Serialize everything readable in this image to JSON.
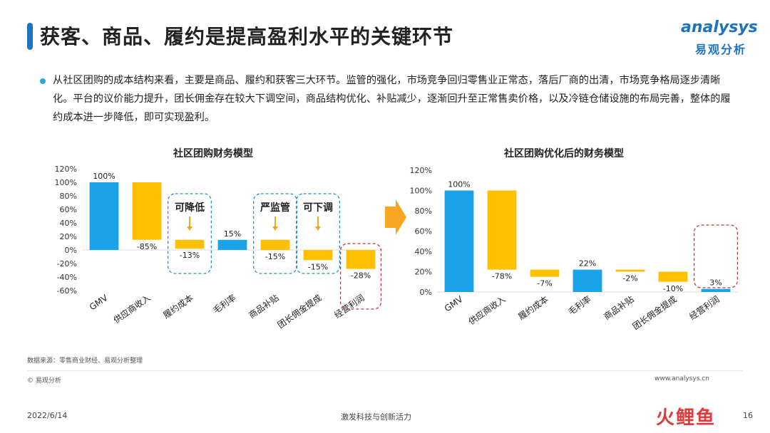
{
  "header": {
    "title": "获客、商品、履约是提高盈利水平的关键环节",
    "logo_en": "analysys",
    "logo_cn": "易观分析"
  },
  "summary": "从社区团购的成本结构来看，主要是商品、履约和获客三大环节。监管的强化，市场竞争回归零售业正常态，落后厂商的出清，市场竞争格局逐步清晰化。平台的议价能力提升，团长佣金存在较大下调空间，商品结构优化、补贴减少，逐渐回升至正常售卖价格，以及冷链仓储设施的布局完善，整体的履约成本进一步降低，即可实现盈利。",
  "chart_data": [
    {
      "type": "bar",
      "title": "社区团购财务模型",
      "categories": [
        "GMV",
        "供应商收入",
        "履约成本",
        "毛利率",
        "商品补贴",
        "团长佣金提成",
        "经营利润"
      ],
      "values": [
        100,
        -85,
        -13,
        15,
        -15,
        -15,
        -28
      ],
      "value_labels": [
        "100%",
        "-85%",
        "-13%",
        "15%",
        "-15%",
        "-15%",
        "-28%"
      ],
      "ylim": [
        -60,
        120
      ],
      "yticks": [
        "120%",
        "100%",
        "80%",
        "60%",
        "40%",
        "20%",
        "0%",
        "-20%",
        "-40%",
        "-60%"
      ],
      "colors": [
        "#1aa3e8",
        "#ffc000",
        "#ffc000",
        "#1aa3e8",
        "#ffc000",
        "#ffc000",
        "#ffc000"
      ],
      "annotations": [
        "可降低",
        "严监管",
        "可下调"
      ]
    },
    {
      "type": "bar",
      "title": "社区团购优化后的财务模型",
      "categories": [
        "GMV",
        "供应商收入",
        "履约成本",
        "毛利率",
        "商品补贴",
        "团长佣金提成",
        "经营利润"
      ],
      "values": [
        100,
        -78,
        -7,
        22,
        -2,
        -10,
        3
      ],
      "value_labels": [
        "100%",
        "-78%",
        "-7%",
        "22%",
        "-2%",
        "-10%",
        "3%"
      ],
      "ylim": [
        0,
        120
      ],
      "yticks": [
        "120%",
        "100%",
        "80%",
        "60%",
        "40%",
        "20%",
        "0%"
      ],
      "colors": [
        "#1aa3e8",
        "#ffc000",
        "#ffc000",
        "#1aa3e8",
        "#ffc000",
        "#ffc000",
        "#1aa3e8"
      ]
    }
  ],
  "footer": {
    "source": "数据来源：零售商业财经、易观分析整理",
    "copyright": "© 易观分析",
    "site": "www.analysys.cn",
    "date": "2022/6/14",
    "slogan": "激发科技与创新活力",
    "brand": "火鲤鱼",
    "page": "16"
  },
  "colors": {
    "blue": "#1aa3e8",
    "gold": "#ffc000",
    "arrow": "#f5a623",
    "red_box": "#c0392b",
    "blue_box": "#2b8fd6"
  }
}
